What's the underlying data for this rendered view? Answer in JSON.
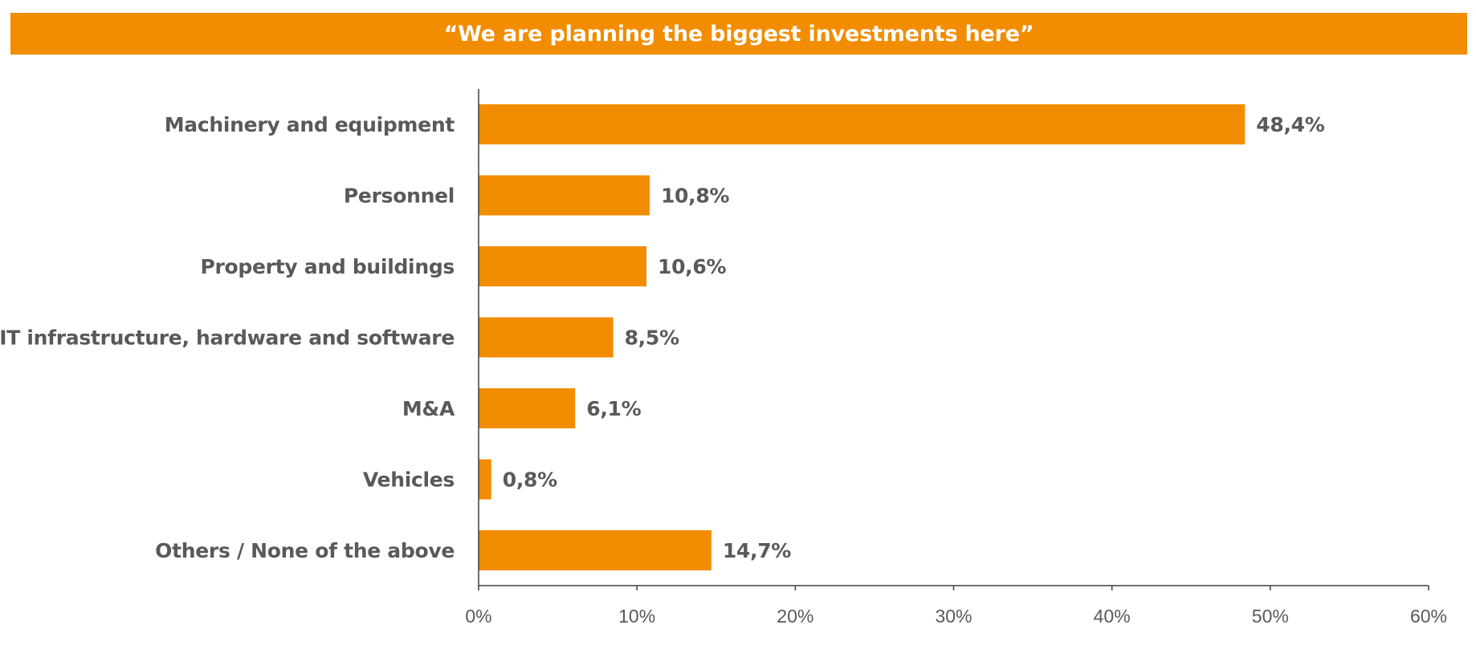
{
  "title": "“We are planning the biggest investments here”",
  "colors": {
    "accent": "#F28C00",
    "label": "#595959",
    "axis": "#3f3f3f",
    "background": "#FFFFFF"
  },
  "chart_data": {
    "type": "bar",
    "orientation": "horizontal",
    "title": "“We are planning the biggest investments here”",
    "categories": [
      "Machinery and equipment",
      "Personnel",
      "Property and buildings",
      "IT infrastructure, hardware and software",
      "M&A",
      "Vehicles",
      "Others / None of the above"
    ],
    "values": [
      48.4,
      10.8,
      10.6,
      8.5,
      6.1,
      0.8,
      14.7
    ],
    "value_labels": [
      "48,4%",
      "10,8%",
      "10,6%",
      "8,5%",
      "6,1%",
      "0,8%",
      "14,7%"
    ],
    "xlim": [
      0,
      60
    ],
    "x_ticks": [
      0,
      10,
      20,
      30,
      40,
      50,
      60
    ],
    "x_tick_labels": [
      "0%",
      "10%",
      "20%",
      "30%",
      "40%",
      "50%",
      "60%"
    ],
    "xlabel": "",
    "ylabel": "",
    "grid": false,
    "legend": "none"
  }
}
